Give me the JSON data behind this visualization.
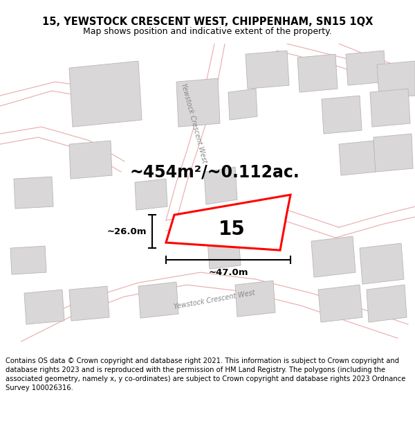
{
  "title": "15, YEWSTOCK CRESCENT WEST, CHIPPENHAM, SN15 1QX",
  "subtitle": "Map shows position and indicative extent of the property.",
  "area_text": "~454m²/~0.112ac.",
  "property_label": "15",
  "dim_vertical": "~26.0m",
  "dim_horizontal": "~47.0m",
  "street_label_top": "Yewstock Crescent West",
  "street_label_bottom": "Yewstock Crescent West",
  "disclaimer": "Contains OS data © Crown copyright and database right 2021. This information is subject to Crown copyright and database rights 2023 and is reproduced with the permission of HM Land Registry. The polygons (including the associated geometry, namely x, y co-ordinates) are subject to Crown copyright and database rights 2023 Ordnance Survey 100026316.",
  "map_bg": "#f9f8f8",
  "building_fill": "#d9d7d7",
  "building_edge": "#b8b5b5",
  "road_color": "#e8aaaa",
  "property_color": "#ff0000",
  "title_fontsize": 10.5,
  "subtitle_fontsize": 9,
  "area_fontsize": 17,
  "label_fontsize": 20,
  "street_fontsize": 7,
  "disclaimer_fontsize": 7.2
}
